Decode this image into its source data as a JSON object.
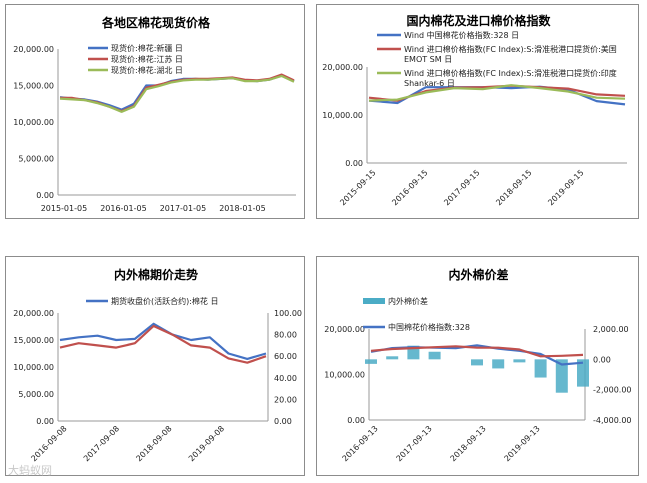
{
  "charts": [
    {
      "title": "各地区棉花现货价格",
      "type": "line",
      "x_ticks": [
        "2015-01-05",
        "2016-01-05",
        "2017-01-05",
        "2018-01-05"
      ],
      "y_ticks": [
        "0.00",
        "5,000.00",
        "10,000.00",
        "15,000.00",
        "20,000.00"
      ],
      "ylim": [
        0,
        20000
      ],
      "legend": [
        "现货价:棉花:新疆 日",
        "现货价:棉花:江苏 日",
        "现货价:棉花:湖北 日"
      ],
      "colors": [
        "#4472c4",
        "#c0504d",
        "#9bbb59"
      ]
    },
    {
      "title": "国内棉花及进口棉价格指数",
      "type": "line",
      "x_ticks": [
        "2015-09-15",
        "2016-09-15",
        "2017-09-15",
        "2018-09-15",
        "2019-09-15"
      ],
      "y_ticks": [
        "0.00",
        "10,000.00",
        "20,000.00"
      ],
      "ylim": [
        0,
        20000
      ],
      "legend": [
        "Wind 中国棉花价格指数:328 日",
        "Wind 进口棉价格指数(FC Index):S:滑准税港口提货价:美国 EMOT SM 日",
        "Wind 进口棉价格指数(FC Index):S:滑准税港口提货价:印度 Shankar-6 日"
      ],
      "colors": [
        "#4472c4",
        "#c0504d",
        "#9bbb59"
      ]
    },
    {
      "title": "内外棉期价走势",
      "type": "line",
      "x_ticks": [
        "2016-09-08",
        "2017-09-08",
        "2018-09-08",
        "2019-09-08"
      ],
      "y_ticks": [
        "0.00",
        "5,000.00",
        "10,000.00",
        "15,000.00",
        "20,000.00"
      ],
      "y2_ticks": [
        "0.00",
        "20.00",
        "40.00",
        "60.00",
        "80.00",
        "100.00"
      ],
      "ylim": [
        0,
        20000
      ],
      "y2lim": [
        0,
        100
      ],
      "legend": [
        "期货收盘价(活跃合约):棉花 日"
      ],
      "colors": [
        "#4472c4",
        "#c0504d"
      ]
    },
    {
      "title": "内外棉价差",
      "type": "line",
      "x_ticks": [
        "2016-09-13",
        "2017-09-13",
        "2018-09-13",
        "2019-09-13"
      ],
      "y_ticks": [
        "0.00",
        "10,000.00",
        "20,000.00"
      ],
      "y2_ticks": [
        "-4,000.00",
        "-2,000.00",
        "0.00",
        "2,000.00"
      ],
      "ylim": [
        0,
        20000
      ],
      "y2lim": [
        -4000,
        2000
      ],
      "legend": [
        "内外棉价差",
        "中国棉花价格指数:328"
      ],
      "colors": [
        "#4bacc6",
        "#4472c4",
        "#c0504d"
      ]
    }
  ],
  "chart_data": [
    {
      "type": "line",
      "title": "各地区棉花现货价格",
      "ylim": [
        0,
        20000
      ],
      "x": [
        "2015-01",
        "2015-04",
        "2015-07",
        "2015-10",
        "2016-01",
        "2016-02",
        "2016-04",
        "2016-07",
        "2016-09",
        "2017-01",
        "2017-04",
        "2017-07",
        "2017-10",
        "2018-01",
        "2018-04",
        "2018-07",
        "2018-10",
        "2019-01",
        "2019-04",
        "2019-06"
      ],
      "series": [
        {
          "name": "现货价:棉花:新疆 日",
          "values": [
            13400,
            13200,
            13100,
            12800,
            12300,
            11700,
            12500,
            15000,
            15000,
            15600,
            15900,
            15900,
            15800,
            15900,
            16000,
            15700,
            15600,
            15800,
            16400,
            15600
          ]
        },
        {
          "name": "现货价:棉花:江苏 日",
          "values": [
            13300,
            13300,
            13000,
            12700,
            12100,
            11500,
            12200,
            14700,
            15100,
            15500,
            15800,
            15900,
            15900,
            16000,
            16100,
            15800,
            15700,
            15900,
            16500,
            15700
          ]
        },
        {
          "name": "现货价:棉花:湖北 日",
          "values": [
            13200,
            13100,
            13000,
            12600,
            12100,
            11400,
            12100,
            14500,
            14900,
            15400,
            15700,
            15800,
            15800,
            15900,
            16000,
            15600,
            15600,
            15800,
            16300,
            15500
          ]
        }
      ]
    },
    {
      "type": "line",
      "title": "国内棉花及进口棉价格指数",
      "ylim": [
        0,
        20000
      ],
      "x": [
        "2015-09",
        "2016-03",
        "2016-09",
        "2017-03",
        "2017-09",
        "2018-03",
        "2018-09",
        "2019-03",
        "2019-09",
        "2020-01"
      ],
      "series": [
        {
          "name": "Wind 中国棉花价格指数:328 日",
          "values": [
            13000,
            12500,
            15800,
            15800,
            15800,
            15600,
            15900,
            15300,
            12900,
            12200
          ]
        },
        {
          "name": "Wind 进口棉价格指数(FC Index):S:滑准税港口提货价:美国 EMOT SM 日",
          "values": [
            13600,
            13000,
            15000,
            15700,
            15800,
            16100,
            15800,
            15500,
            14300,
            14000
          ]
        },
        {
          "name": "Wind 进口棉价格指数(FC Index):S:滑准税港口提货价:印度 Shankar-6 日",
          "values": [
            13000,
            13200,
            14700,
            15600,
            15400,
            16200,
            15600,
            14900,
            13600,
            13400
          ]
        }
      ]
    },
    {
      "type": "line",
      "title": "内外棉期价走势",
      "ylim": [
        0,
        20000
      ],
      "y2lim": [
        0,
        100
      ],
      "x": [
        "2016-09",
        "2017-01",
        "2017-05",
        "2017-09",
        "2018-01",
        "2018-06",
        "2018-09",
        "2019-01",
        "2019-05",
        "2019-07",
        "2019-10",
        "2019-12"
      ],
      "series": [
        {
          "name": "期货收盘价(活跃合约):棉花 日",
          "values": [
            15000,
            15500,
            15800,
            15000,
            15200,
            18000,
            16000,
            15000,
            15500,
            12500,
            11500,
            12500
          ]
        },
        {
          "name": "",
          "axis": "right",
          "values": [
            68,
            72,
            70,
            68,
            72,
            88,
            80,
            70,
            68,
            58,
            54,
            60
          ]
        }
      ]
    },
    {
      "type": "bar+line",
      "title": "内外棉价差",
      "ylim": [
        0,
        20000
      ],
      "y2lim": [
        -4000,
        2000
      ],
      "x": [
        "2016-09",
        "2017-01",
        "2017-05",
        "2017-09",
        "2018-01",
        "2018-05",
        "2018-09",
        "2019-01",
        "2019-05",
        "2019-09",
        "2019-12"
      ],
      "series": [
        {
          "name": "内外棉价差",
          "axis": "right",
          "values": [
            -300,
            200,
            900,
            500,
            0,
            -400,
            -600,
            -200,
            -1200,
            -2200,
            -1800
          ]
        },
        {
          "name": "中国棉花价格指数:328",
          "values": [
            15000,
            15800,
            16000,
            15900,
            15800,
            16400,
            15700,
            15200,
            14500,
            12200,
            12600
          ]
        },
        {
          "name": "",
          "values": [
            15200,
            15600,
            15800,
            16000,
            16200,
            15900,
            15900,
            15500,
            14000,
            14100,
            14300
          ]
        }
      ]
    }
  ],
  "watermark": "大蚂蚁网"
}
